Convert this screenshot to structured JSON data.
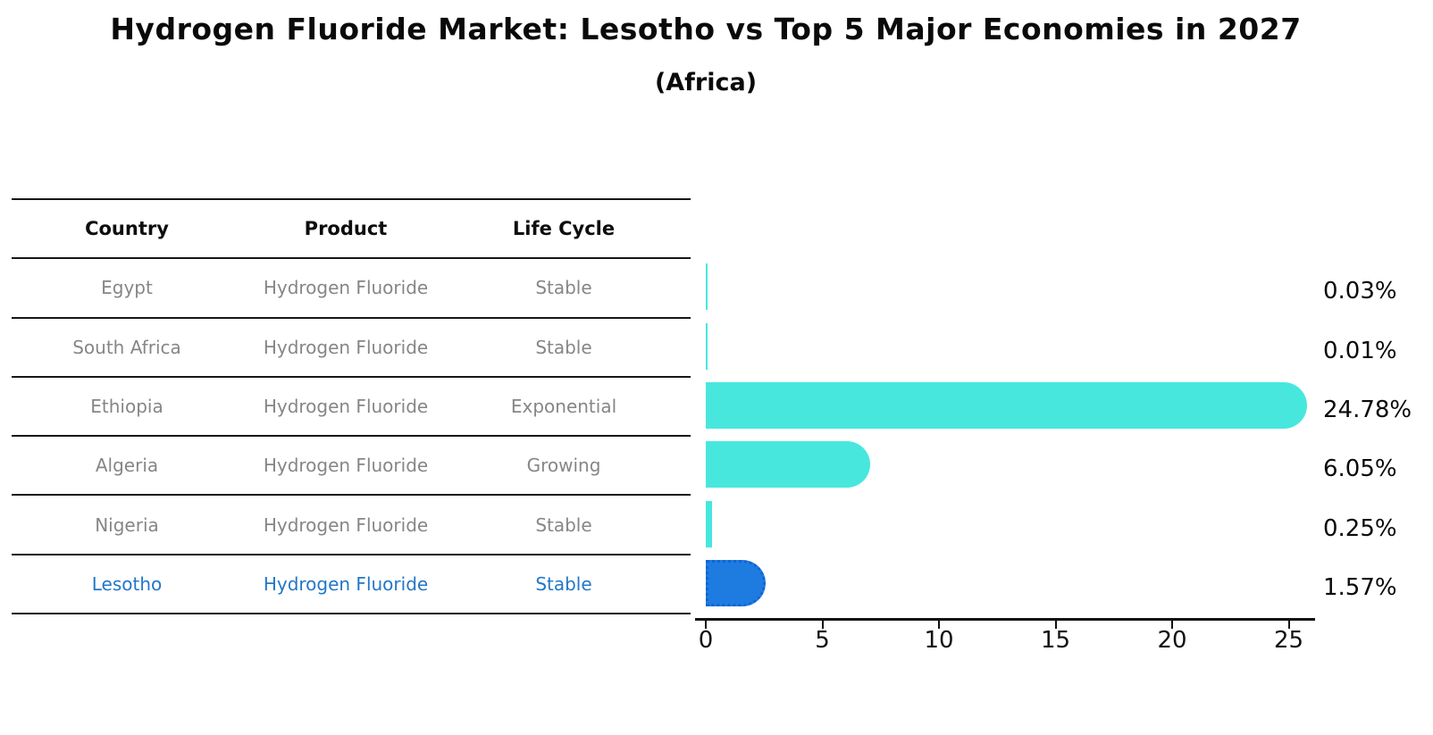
{
  "chart_data": {
    "type": "bar",
    "orientation": "horizontal",
    "title": "Hydrogen Fluoride Market: Lesotho vs Top 5 Major Economies in 2027",
    "subtitle": "(Africa)",
    "categories": [
      "Egypt",
      "South Africa",
      "Ethiopia",
      "Algeria",
      "Nigeria",
      "Lesotho"
    ],
    "values": [
      0.03,
      0.01,
      24.78,
      6.05,
      0.25,
      1.57
    ],
    "value_labels": [
      "0.03%",
      "0.01%",
      "24.78%",
      "6.05%",
      "0.25%",
      "1.57%"
    ],
    "x_ticks": [
      0,
      5,
      10,
      15,
      20,
      25
    ],
    "xlim": [
      0,
      26
    ],
    "grid": false,
    "legend": "none",
    "bar_colors": [
      "#47e7de",
      "#47e7de",
      "#47e7de",
      "#47e7de",
      "#47e7de",
      "#1e7ce0"
    ],
    "highlight_index": 5,
    "highlight_edge_style": "dotted"
  },
  "table": {
    "headers": [
      "Country",
      "Product",
      "Life Cycle"
    ],
    "rows": [
      {
        "country": "Egypt",
        "product": "Hydrogen Fluoride",
        "life_cycle": "Stable",
        "highlight": false
      },
      {
        "country": "South Africa",
        "product": "Hydrogen Fluoride",
        "life_cycle": "Stable",
        "highlight": false
      },
      {
        "country": "Ethiopia",
        "product": "Hydrogen Fluoride",
        "life_cycle": "Exponential",
        "highlight": false
      },
      {
        "country": "Algeria",
        "product": "Hydrogen Fluoride",
        "life_cycle": "Growing",
        "highlight": false
      },
      {
        "country": "Nigeria",
        "product": "Hydrogen Fluoride",
        "life_cycle": "Stable",
        "highlight": false
      },
      {
        "country": "Lesotho",
        "product": "Hydrogen Fluoride",
        "life_cycle": "Stable",
        "highlight": true
      }
    ]
  },
  "colors": {
    "base_bar": "#47e7de",
    "highlight_bar": "#1e7ce0",
    "highlight_text": "#2277c8",
    "table_text": "#868686",
    "line": "#161616"
  }
}
